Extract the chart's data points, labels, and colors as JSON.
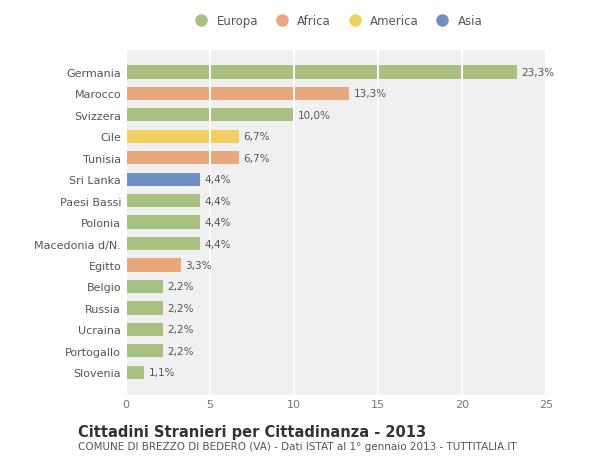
{
  "countries": [
    "Germania",
    "Marocco",
    "Svizzera",
    "Cile",
    "Tunisia",
    "Sri Lanka",
    "Paesi Bassi",
    "Polonia",
    "Macedonia d/N.",
    "Egitto",
    "Belgio",
    "Russia",
    "Ucraina",
    "Portogallo",
    "Slovenia"
  ],
  "values": [
    23.3,
    13.3,
    10.0,
    6.7,
    6.7,
    4.4,
    4.4,
    4.4,
    4.4,
    3.3,
    2.2,
    2.2,
    2.2,
    2.2,
    1.1
  ],
  "labels": [
    "23,3%",
    "13,3%",
    "10,0%",
    "6,7%",
    "6,7%",
    "4,4%",
    "4,4%",
    "4,4%",
    "4,4%",
    "3,3%",
    "2,2%",
    "2,2%",
    "2,2%",
    "2,2%",
    "1,1%"
  ],
  "continents": [
    "Europa",
    "Africa",
    "Europa",
    "America",
    "Africa",
    "Asia",
    "Europa",
    "Europa",
    "Europa",
    "Africa",
    "Europa",
    "Europa",
    "Europa",
    "Europa",
    "Europa"
  ],
  "colors": {
    "Europa": "#a8c080",
    "Africa": "#e8a87c",
    "America": "#f0d060",
    "Asia": "#6f8dc0"
  },
  "xlim": [
    0,
    25
  ],
  "xticks": [
    0,
    5,
    10,
    15,
    20,
    25
  ],
  "title": "Cittadini Stranieri per Cittadinanza - 2013",
  "subtitle": "COMUNE DI BREZZO DI BEDERO (VA) - Dati ISTAT al 1° gennaio 2013 - TUTTITALIA.IT",
  "bg_color": "#ffffff",
  "plot_bg_color": "#f0f0f0",
  "grid_color": "#ffffff",
  "bar_height": 0.62,
  "title_fontsize": 10.5,
  "subtitle_fontsize": 7.5,
  "label_fontsize": 7.5,
  "tick_fontsize": 8,
  "legend_fontsize": 8.5,
  "legend_entries": [
    "Europa",
    "Africa",
    "America",
    "Asia"
  ]
}
